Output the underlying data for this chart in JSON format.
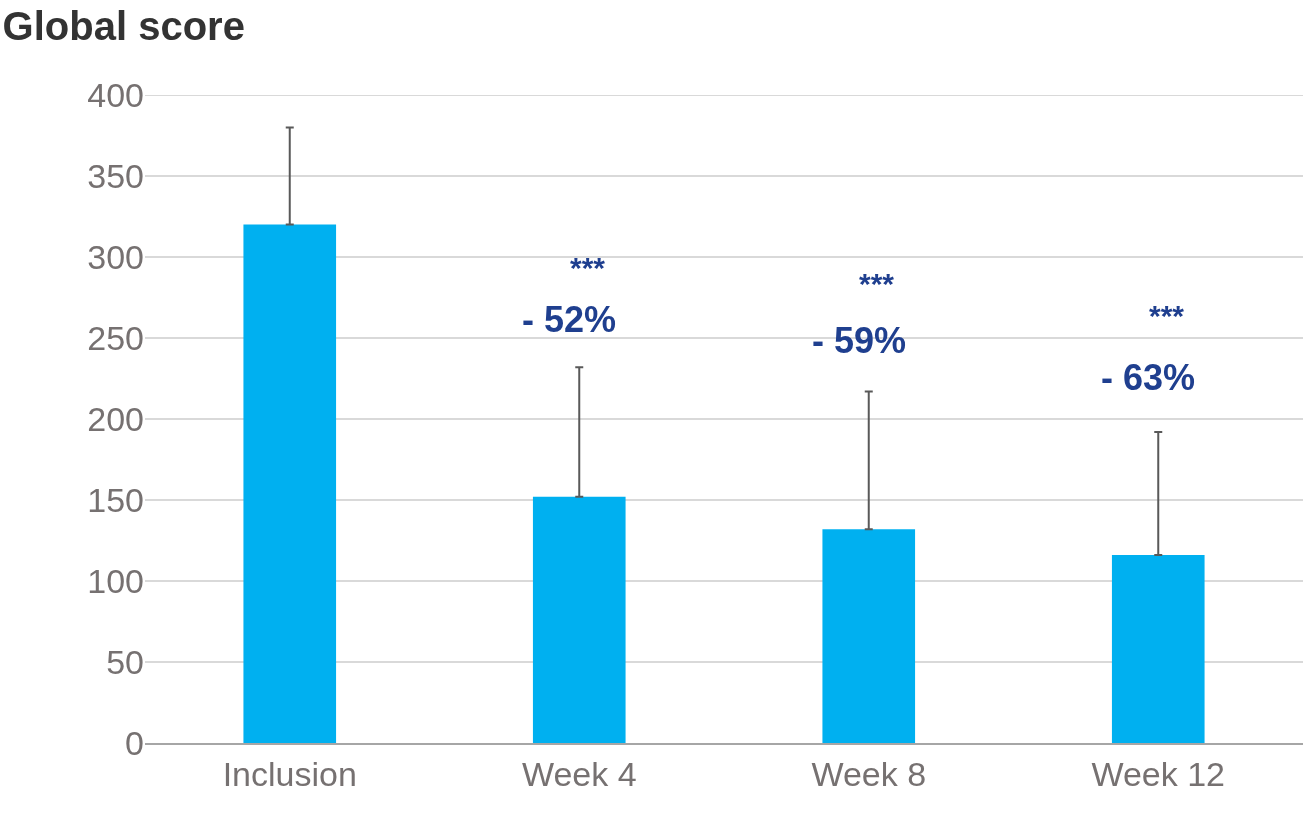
{
  "chart_data": {
    "type": "bar",
    "title": "Global score",
    "categories": [
      "Inclusion",
      "Week 4",
      "Week 8",
      "Week 12"
    ],
    "values": [
      320,
      152,
      132,
      116
    ],
    "errors": [
      [
        320,
        380
      ],
      [
        152,
        232
      ],
      [
        132,
        217
      ],
      [
        116,
        192
      ]
    ],
    "color": "#00b0f0",
    "ylim": [
      0,
      400
    ],
    "yticks": [
      0,
      50,
      100,
      150,
      200,
      250,
      300,
      350,
      400
    ],
    "grid": "y",
    "annotations": [
      "***",
      "- 52%",
      "***",
      "- 59%",
      "***",
      "- 63%"
    ]
  }
}
